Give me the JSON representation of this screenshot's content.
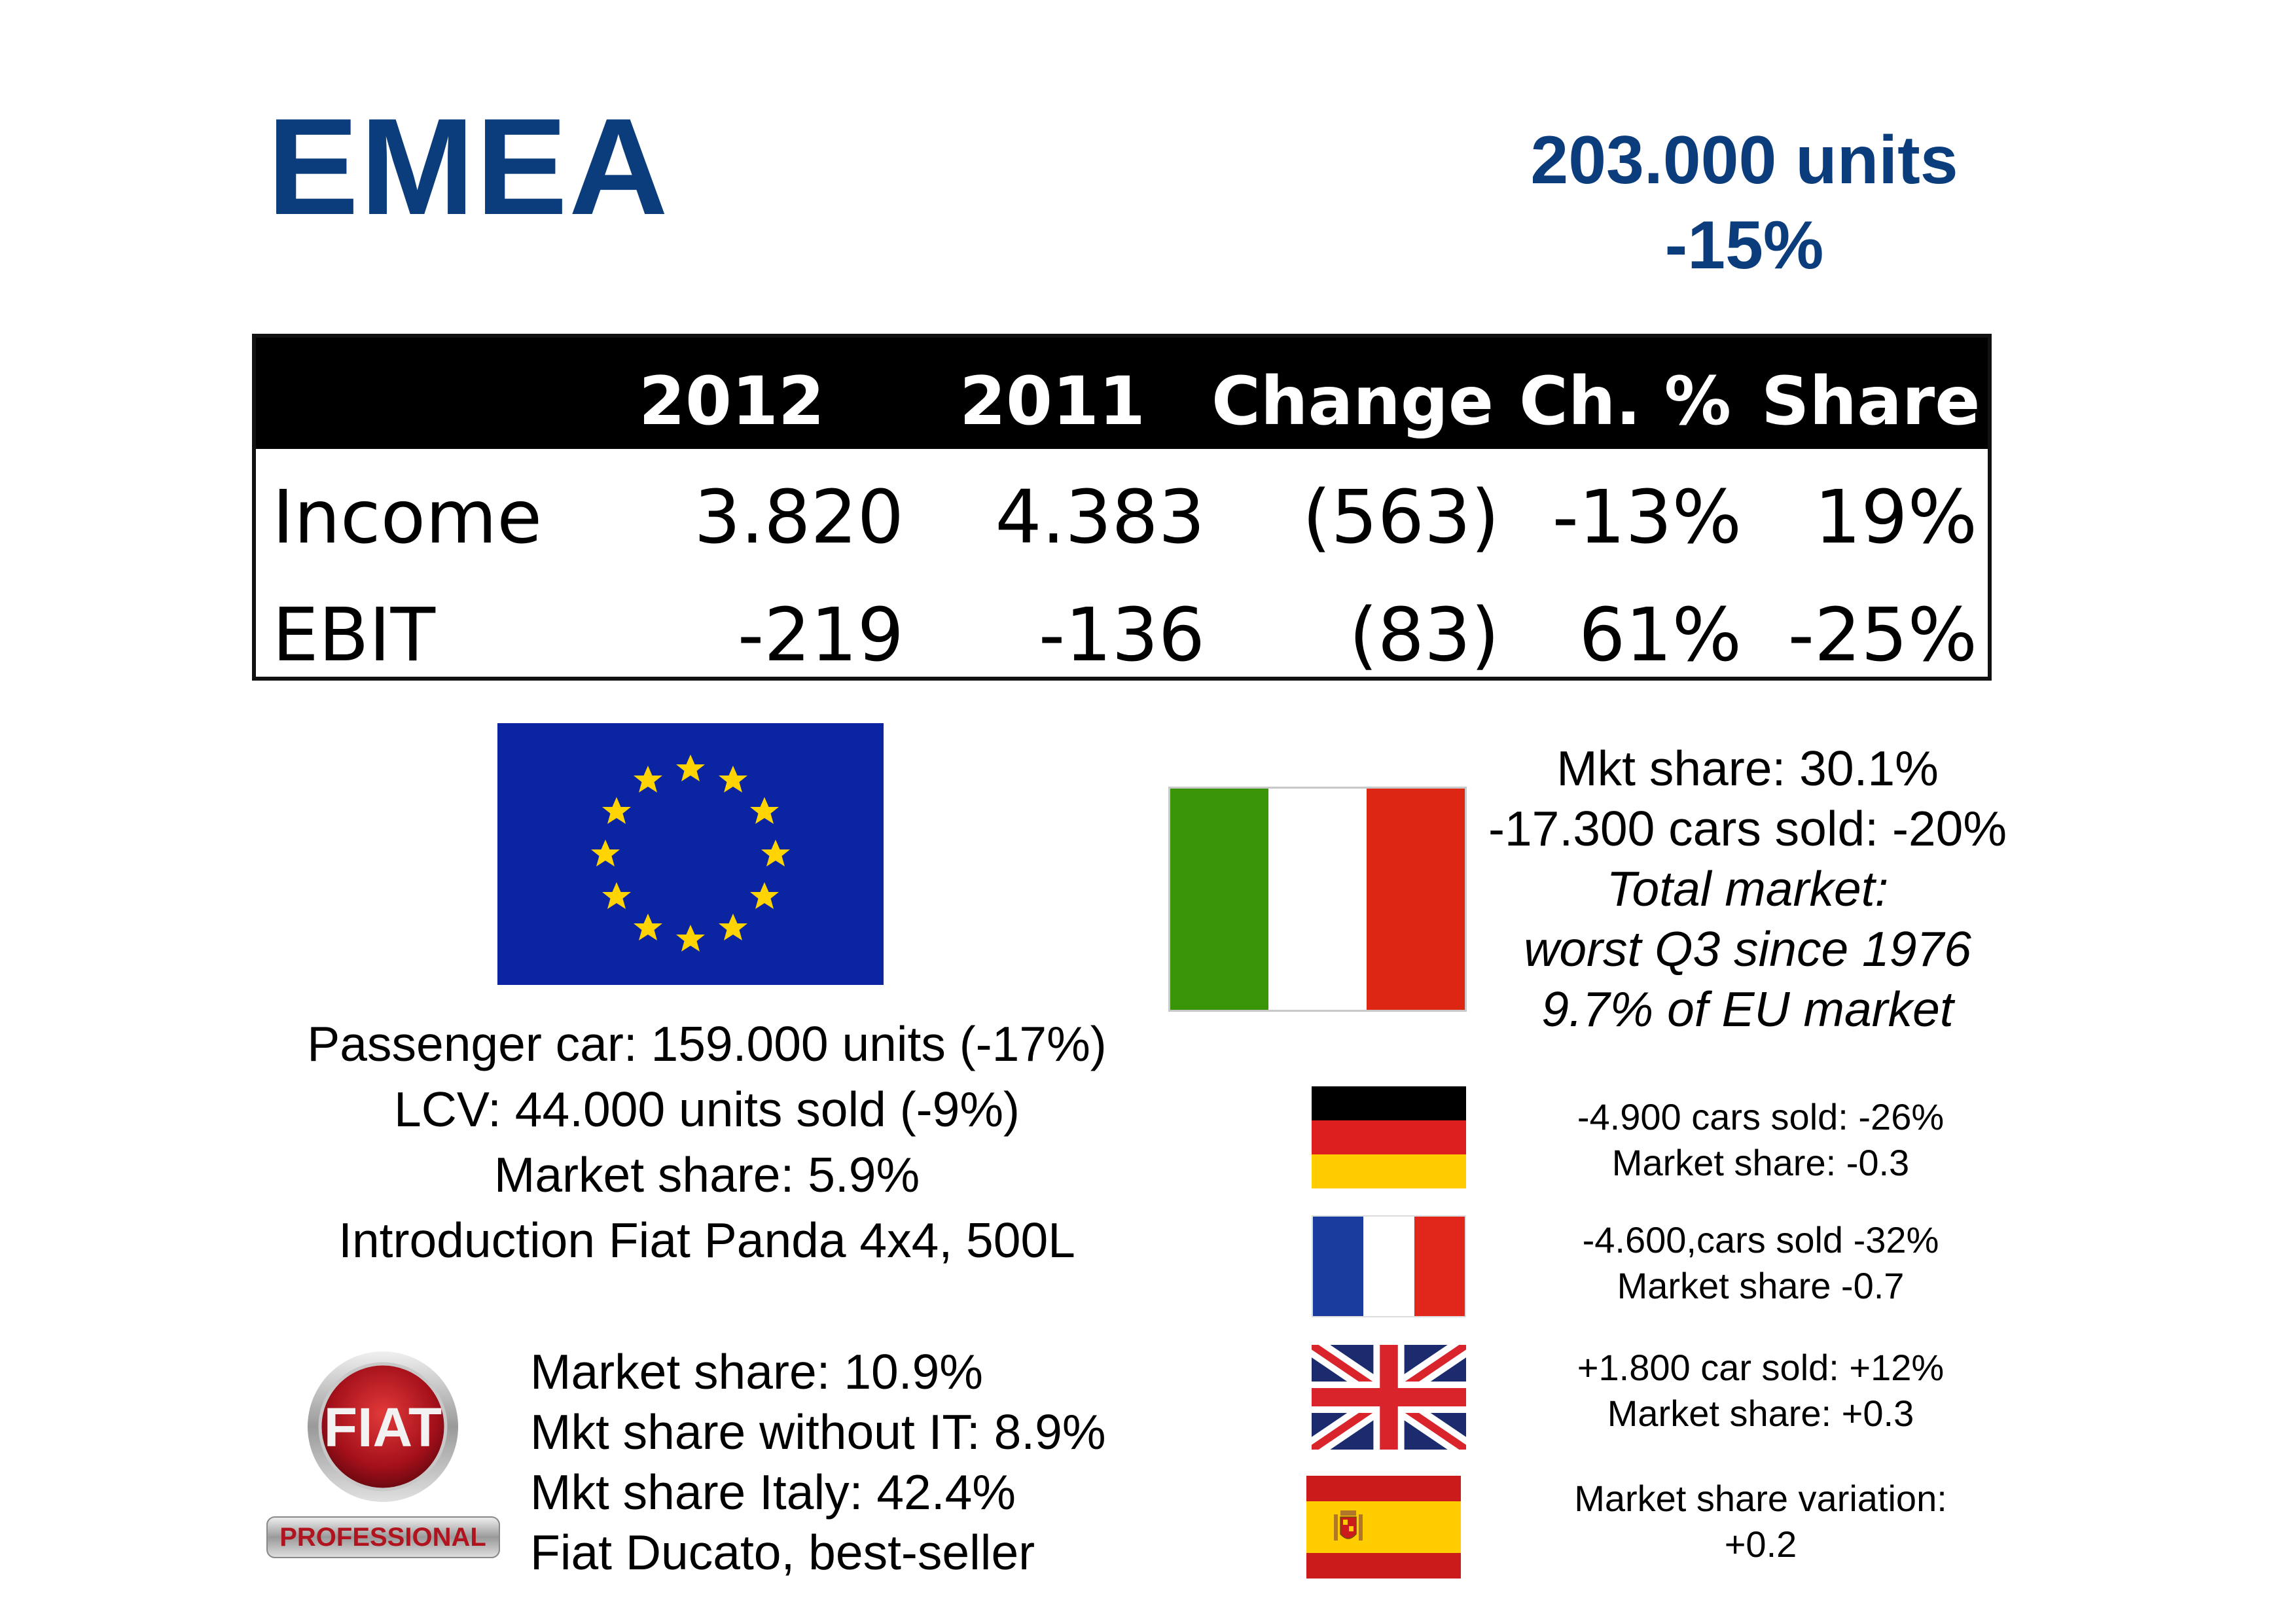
{
  "title": "EMEA",
  "headline": {
    "units": "203.000 units",
    "change": "-15%"
  },
  "table": {
    "headers": [
      "",
      "2012",
      "2011",
      "Change",
      "Ch. %",
      "Share"
    ],
    "rows": [
      [
        "Income",
        "3.820",
        "4.383",
        "(563)",
        "-13%",
        "19%"
      ],
      [
        "EBIT",
        "-219",
        "-136",
        "(83)",
        "61%",
        "-25%"
      ]
    ]
  },
  "eu": {
    "lines": [
      "Passenger car: 159.000 units (-17%)",
      "LCV: 44.000 units sold (-9%)",
      "Market share: 5.9%",
      "Introduction Fiat Panda 4x4, 500L"
    ]
  },
  "italy": {
    "lines": [
      "Mkt share: 30.1%",
      "-17.300 cars sold: -20%",
      "Total market:",
      "worst Q3 since 1976",
      "9.7% of EU market"
    ],
    "flag_colors": [
      "#3a9408",
      "#ffffff",
      "#de2614"
    ]
  },
  "germany": {
    "lines": [
      "-4.900 cars sold: -26%",
      "Market share: -0.3"
    ],
    "flag_colors": [
      "#000000",
      "#dd1f1f",
      "#ffcc00"
    ]
  },
  "france": {
    "lines": [
      "-4.600,cars sold -32%",
      "Market share -0.7"
    ],
    "flag_colors": [
      "#1a3c9e",
      "#ffffff",
      "#e1261c"
    ]
  },
  "uk": {
    "lines": [
      "+1.800 car sold: +12%",
      "Market share: +0.3"
    ],
    "flag_colors": [
      "#1b2b6e",
      "#ffffff",
      "#d9242b"
    ]
  },
  "spain": {
    "lines": [
      "Market share variation:",
      "+0.2"
    ],
    "flag_colors": [
      "#cc1b1b",
      "#ffcc00"
    ]
  },
  "fiat_professional": {
    "logo_text": "FIAT",
    "logo_subtext": "PROFESSIONAL",
    "lines": [
      "Market share: 10.9%",
      "Mkt share without IT: 8.9%",
      "Mkt share Italy: 42.4%",
      "Fiat Ducato, best-seller"
    ]
  },
  "colors": {
    "title_blue": "#0b3d7c",
    "eu_blue": "#0b25a2",
    "eu_star": "#ffd400"
  }
}
